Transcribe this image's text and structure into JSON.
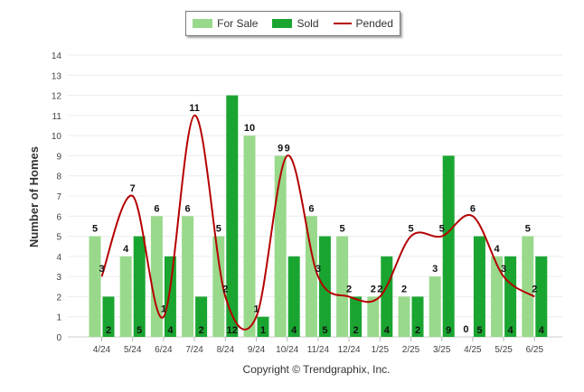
{
  "legend": {
    "items": [
      {
        "label": "For Sale",
        "color": "#99d98c"
      },
      {
        "label": "Sold",
        "color": "#1aa531"
      },
      {
        "label": "Pended",
        "color": "#b50000"
      }
    ]
  },
  "footer": {
    "copyright": "Copyright © Trendgraphix, Inc."
  },
  "chart_data": {
    "type": "bar",
    "ylabel": "Number of Homes",
    "xlabel": "",
    "ylim": [
      0,
      14
    ],
    "yticks": [
      0,
      1,
      2,
      3,
      4,
      5,
      6,
      7,
      8,
      9,
      10,
      11,
      12,
      13,
      14
    ],
    "grid": true,
    "legend_position": "top",
    "categories": [
      "4/24",
      "5/24",
      "6/24",
      "7/24",
      "8/24",
      "9/24",
      "10/24",
      "11/24",
      "12/24",
      "1/25",
      "2/25",
      "3/25",
      "4/25",
      "5/25",
      "6/25"
    ],
    "series": [
      {
        "name": "For Sale",
        "type": "bar",
        "color": "#99d98c",
        "values": [
          5,
          4,
          6,
          6,
          5,
          10,
          9,
          6,
          5,
          2,
          2,
          3,
          0,
          4,
          5
        ]
      },
      {
        "name": "Sold",
        "type": "bar",
        "color": "#1aa531",
        "values": [
          2,
          5,
          4,
          2,
          12,
          1,
          4,
          5,
          2,
          4,
          2,
          9,
          5,
          4,
          4
        ]
      },
      {
        "name": "Pended",
        "type": "line",
        "color": "#b50000",
        "values": [
          3,
          7,
          1,
          11,
          2,
          1,
          9,
          3,
          2,
          2,
          5,
          5,
          6,
          3,
          2
        ]
      }
    ]
  }
}
